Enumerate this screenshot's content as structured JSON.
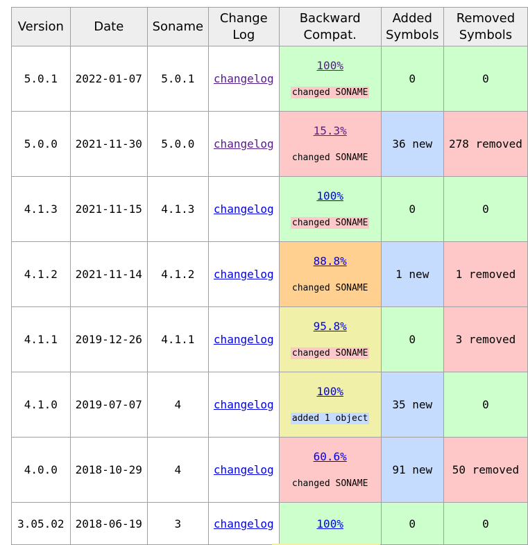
{
  "headers": {
    "version": "Version",
    "date": "Date",
    "soname": "Soname",
    "changelog": "Change\nLog",
    "backward": "Backward\nCompat.",
    "added": "Added\nSymbols",
    "removed": "Removed\nSymbols"
  },
  "rows": [
    {
      "version": "5.0.1",
      "date": "2022-01-07",
      "soname": "5.0.1",
      "log": "changelog",
      "compat": "100%",
      "note": "changed SONAME",
      "added": "0",
      "removed": "0"
    },
    {
      "version": "5.0.0",
      "date": "2021-11-30",
      "soname": "5.0.0",
      "log": "changelog",
      "compat": "15.3%",
      "note": "changed SONAME",
      "added": "36 new",
      "removed": "278 removed"
    },
    {
      "version": "4.1.3",
      "date": "2021-11-15",
      "soname": "4.1.3",
      "log": "changelog",
      "compat": "100%",
      "note": "changed SONAME",
      "added": "0",
      "removed": "0"
    },
    {
      "version": "4.1.2",
      "date": "2021-11-14",
      "soname": "4.1.2",
      "log": "changelog",
      "compat": "88.8%",
      "note": "changed SONAME",
      "added": "1 new",
      "removed": "1 removed"
    },
    {
      "version": "4.1.1",
      "date": "2019-12-26",
      "soname": "4.1.1",
      "log": "changelog",
      "compat": "95.8%",
      "note": "changed SONAME",
      "added": "0",
      "removed": "3 removed"
    },
    {
      "version": "4.1.0",
      "date": "2019-07-07",
      "soname": "4",
      "log": "changelog",
      "compat": "100%",
      "note": "added 1 object",
      "added": "35 new",
      "removed": "0"
    },
    {
      "version": "4.0.0",
      "date": "2018-10-29",
      "soname": "4",
      "log": "changelog",
      "compat": "60.6%",
      "note": "changed SONAME",
      "added": "91 new",
      "removed": "50 removed"
    },
    {
      "version": "3.05.02",
      "date": "2018-06-19",
      "soname": "3",
      "log": "changelog",
      "compat": "100%",
      "added": "0",
      "removed": "0"
    }
  ],
  "colors": {
    "green": "#ccffcc",
    "red": "#ffc8c8",
    "orange": "#ffd090",
    "yellow": "#f0f0a8",
    "blue": "#c6dcff"
  }
}
